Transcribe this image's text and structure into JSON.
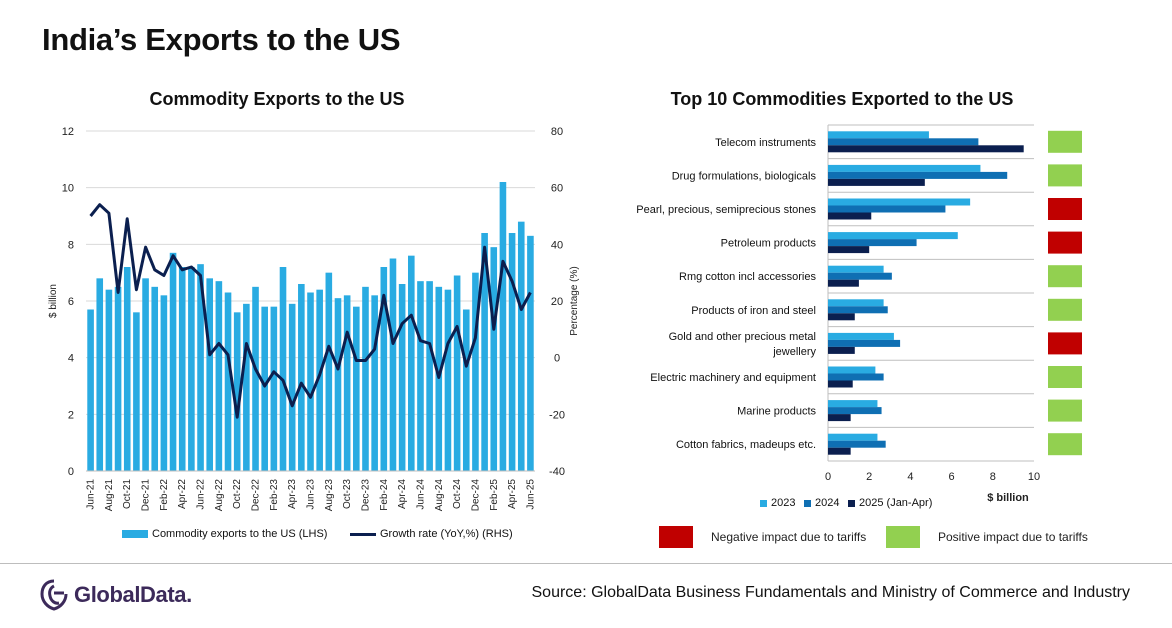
{
  "title": "India’s Exports to the US",
  "source": "Source: GlobalData Business Fundamentals and Ministry of Commerce and Industry",
  "brand": "GlobalData.",
  "colors": {
    "bar_light": "#29abe2",
    "bar_mid": "#0f6fb3",
    "bar_dark": "#0b1f4f",
    "line": "#0b1f4f",
    "negative": "#c00000",
    "positive": "#92d050",
    "brand": "#3c2a5a"
  },
  "legend_left": {
    "bars": "Commodity exports to the US (LHS)",
    "line": "Growth rate (YoY,%) (RHS)"
  },
  "legend_right": {
    "s2023": "2023",
    "s2024": "2024",
    "s2025": "2025 (Jan-Apr)"
  },
  "impact_legend": {
    "negative": "Negative impact due to tariffs",
    "positive": "Positive impact due to tariffs"
  },
  "chart_data": [
    {
      "type": "bar+line",
      "title": "Commodity Exports to the US",
      "ylabel": "$ billion",
      "y2label": "Percentage (%)",
      "ylim": [
        0,
        12
      ],
      "y2lim": [
        -40,
        80
      ],
      "yticks": [
        "0",
        "2",
        "4",
        "6",
        "8",
        "10",
        "12"
      ],
      "y2ticks": [
        "-40",
        "-20",
        "0",
        "20",
        "40",
        "60",
        "80"
      ],
      "x_tick_labels": [
        "Jun-21",
        "Aug-21",
        "Oct-21",
        "Dec-21",
        "Feb-22",
        "Apr-22",
        "Jun-22",
        "Aug-22",
        "Oct-22",
        "Dec-22",
        "Feb-23",
        "Apr-23",
        "Jun-23",
        "Aug-23",
        "Oct-23",
        "Dec-23",
        "Feb-24",
        "Apr-24",
        "Jun-24",
        "Aug-24",
        "Oct-24",
        "Dec-24",
        "Feb-25",
        "Apr-25",
        "Jun-25"
      ],
      "months": 49,
      "bars": [
        5.7,
        6.8,
        6.4,
        6.5,
        7.2,
        5.6,
        6.8,
        6.5,
        6.2,
        7.7,
        7.2,
        7.2,
        7.3,
        6.8,
        6.7,
        6.3,
        5.6,
        5.9,
        6.5,
        5.8,
        5.8,
        7.2,
        5.9,
        6.6,
        6.3,
        6.4,
        7.0,
        6.1,
        6.2,
        5.8,
        6.5,
        6.2,
        7.2,
        7.5,
        6.6,
        7.6,
        6.7,
        6.7,
        6.5,
        6.4,
        6.9,
        5.7,
        7.0,
        8.4,
        7.9,
        10.2,
        8.4,
        8.8,
        8.3
      ],
      "growth": [
        50,
        54,
        51,
        23,
        49,
        24,
        39,
        31,
        29,
        36,
        31,
        32,
        29,
        1,
        5,
        1,
        -21,
        5,
        -4,
        -10,
        -5,
        -8,
        -17,
        -9,
        -14,
        -6,
        4,
        -4,
        9,
        -1,
        -1,
        3,
        22,
        5,
        12,
        15,
        6,
        5,
        -7,
        5,
        11,
        -3,
        7,
        39,
        10,
        34,
        27,
        17,
        23
      ]
    },
    {
      "type": "bar-horizontal",
      "title": "Top 10 Commodities Exported to the US",
      "xlabel": "$ billion",
      "xlim": [
        0,
        10
      ],
      "xticks": [
        "0",
        "2",
        "4",
        "6",
        "8",
        "10"
      ],
      "categories": [
        "Telecom instruments",
        "Drug formulations, biologicals",
        "Pearl, precious, semiprecious stones",
        "Petroleum products",
        "Rmg cotton incl accessories",
        "Products of iron and steel",
        "Gold and other precious metal jewellery",
        "Electric machinery and equipment",
        "Marine products",
        "Cotton fabrics, madeups etc."
      ],
      "series": [
        {
          "name": "2023",
          "values": [
            4.9,
            7.4,
            6.9,
            6.3,
            2.7,
            2.7,
            3.2,
            2.3,
            2.4,
            2.4
          ]
        },
        {
          "name": "2024",
          "values": [
            7.3,
            8.7,
            5.7,
            4.3,
            3.1,
            2.9,
            3.5,
            2.7,
            2.6,
            2.8
          ]
        },
        {
          "name": "2025 (Jan-Apr)",
          "values": [
            9.5,
            4.7,
            2.1,
            2.0,
            1.5,
            1.3,
            1.3,
            1.2,
            1.1,
            1.1
          ]
        }
      ],
      "impact": [
        "positive",
        "positive",
        "negative",
        "negative",
        "positive",
        "positive",
        "negative",
        "positive",
        "positive",
        "positive"
      ]
    }
  ]
}
